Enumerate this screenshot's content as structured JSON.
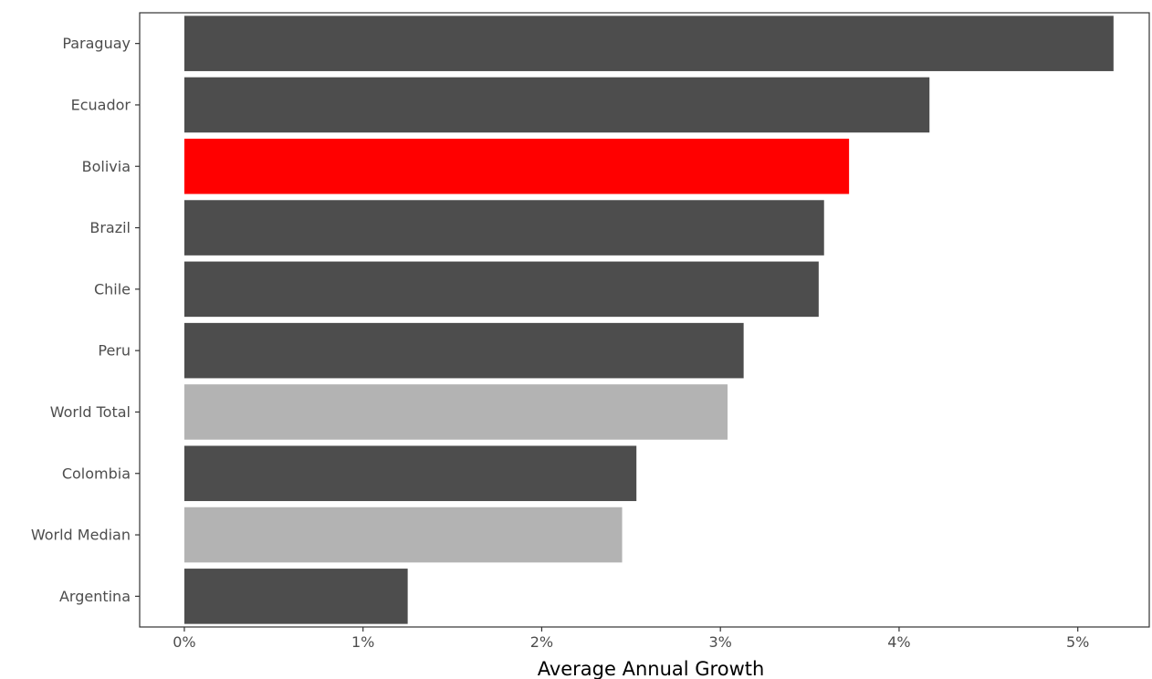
{
  "chart_data": {
    "type": "bar",
    "orientation": "horizontal",
    "xlabel": "Average Annual Growth",
    "ylabel": "",
    "xlim": [
      -0.25,
      5.4
    ],
    "x_ticks": [
      0,
      1,
      2,
      3,
      4,
      5
    ],
    "x_tick_labels": [
      "0%",
      "1%",
      "2%",
      "3%",
      "4%",
      "5%"
    ],
    "grid": false,
    "legend": "none",
    "categories": [
      "Paraguay",
      "Ecuador",
      "Bolivia",
      "Brazil",
      "Chile",
      "Peru",
      "World Total",
      "Colombia",
      "World Median",
      "Argentina"
    ],
    "values": [
      5.2,
      4.17,
      3.72,
      3.58,
      3.55,
      3.13,
      3.04,
      2.53,
      2.45,
      1.25
    ],
    "colors": [
      "#4d4d4d",
      "#4d4d4d",
      "#ff0000",
      "#4d4d4d",
      "#4d4d4d",
      "#4d4d4d",
      "#b3b3b3",
      "#4d4d4d",
      "#b3b3b3",
      "#4d4d4d"
    ]
  }
}
